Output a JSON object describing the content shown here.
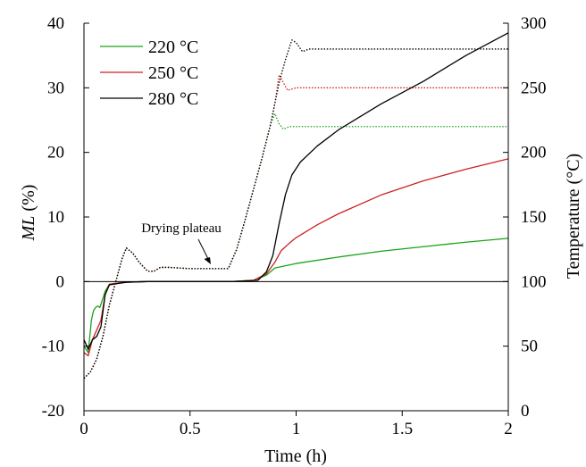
{
  "chart_data": {
    "type": "line",
    "xlabel": "Time (h)",
    "ylabel_left_italic": "ML",
    "ylabel_left_rest": " (%)",
    "ylabel_right": "Temperature (°C)",
    "xlim": [
      0,
      2
    ],
    "ylim_left": [
      -20,
      40
    ],
    "ylim_right": [
      0,
      300
    ],
    "x_ticks": [
      0,
      0.5,
      1,
      1.5,
      2
    ],
    "x_tick_labels": [
      "0",
      "0.5",
      "1",
      "1.5",
      "2"
    ],
    "y_left_ticks": [
      -20,
      -10,
      0,
      10,
      20,
      30,
      40
    ],
    "y_left_tick_labels": [
      "-20",
      "-10",
      "0",
      "10",
      "20",
      "30",
      "40"
    ],
    "y_right_ticks": [
      0,
      50,
      100,
      150,
      200,
      250,
      300
    ],
    "y_right_tick_labels": [
      "0",
      "50",
      "100",
      "150",
      "200",
      "250",
      "300"
    ],
    "grid": false,
    "legend_position": "top-left",
    "annotation": {
      "text": "Drying plateau",
      "x": 0.6,
      "y": 2.2
    },
    "series": [
      {
        "name": "220 °C",
        "color": "#1aa31a",
        "axis": "left",
        "style": "solid",
        "points": [
          [
            0,
            -10
          ],
          [
            0.02,
            -11
          ],
          [
            0.035,
            -6
          ],
          [
            0.045,
            -4.5
          ],
          [
            0.055,
            -4
          ],
          [
            0.065,
            -3.8
          ],
          [
            0.075,
            -4
          ],
          [
            0.085,
            -3
          ],
          [
            0.1,
            -1.5
          ],
          [
            0.12,
            -0.4
          ],
          [
            0.2,
            -0.1
          ],
          [
            0.3,
            0
          ],
          [
            0.5,
            0
          ],
          [
            0.7,
            0
          ],
          [
            0.8,
            0.2
          ],
          [
            0.86,
            1
          ],
          [
            0.9,
            2.1
          ],
          [
            1,
            2.8
          ],
          [
            1.2,
            3.8
          ],
          [
            1.4,
            4.7
          ],
          [
            1.6,
            5.4
          ],
          [
            1.8,
            6.1
          ],
          [
            2,
            6.7
          ]
        ]
      },
      {
        "name": "250 °C",
        "color": "#cc2222",
        "axis": "left",
        "style": "solid",
        "points": [
          [
            0,
            -11
          ],
          [
            0.02,
            -11.5
          ],
          [
            0.04,
            -9
          ],
          [
            0.06,
            -7.5
          ],
          [
            0.08,
            -6
          ],
          [
            0.1,
            -2
          ],
          [
            0.12,
            -0.4
          ],
          [
            0.2,
            -0.1
          ],
          [
            0.3,
            0
          ],
          [
            0.5,
            0
          ],
          [
            0.7,
            0
          ],
          [
            0.8,
            0.2
          ],
          [
            0.86,
            1.2
          ],
          [
            0.9,
            3
          ],
          [
            0.93,
            4.8
          ],
          [
            0.97,
            6
          ],
          [
            1,
            6.8
          ],
          [
            1.1,
            8.8
          ],
          [
            1.2,
            10.5
          ],
          [
            1.4,
            13.4
          ],
          [
            1.6,
            15.6
          ],
          [
            1.8,
            17.4
          ],
          [
            2,
            19
          ]
        ]
      },
      {
        "name": "280 °C",
        "color": "#000000",
        "axis": "left",
        "style": "solid",
        "points": [
          [
            0,
            -9
          ],
          [
            0.02,
            -10.5
          ],
          [
            0.04,
            -9
          ],
          [
            0.06,
            -8.5
          ],
          [
            0.08,
            -7
          ],
          [
            0.1,
            -2
          ],
          [
            0.12,
            -0.5
          ],
          [
            0.2,
            -0.1
          ],
          [
            0.3,
            0
          ],
          [
            0.5,
            0
          ],
          [
            0.7,
            0
          ],
          [
            0.82,
            0.2
          ],
          [
            0.86,
            1.5
          ],
          [
            0.89,
            4
          ],
          [
            0.92,
            9
          ],
          [
            0.95,
            13.5
          ],
          [
            0.98,
            16.5
          ],
          [
            1.02,
            18.5
          ],
          [
            1.1,
            21
          ],
          [
            1.2,
            23.5
          ],
          [
            1.4,
            27.5
          ],
          [
            1.6,
            31
          ],
          [
            1.8,
            35
          ],
          [
            2,
            38.5
          ]
        ]
      },
      {
        "name": "",
        "color": "#1aa31a",
        "axis": "right",
        "style": "dotted",
        "points": [
          [
            0,
            25
          ],
          [
            0.03,
            30
          ],
          [
            0.06,
            40
          ],
          [
            0.09,
            58
          ],
          [
            0.12,
            82
          ],
          [
            0.15,
            100
          ],
          [
            0.18,
            118
          ],
          [
            0.2,
            126
          ],
          [
            0.23,
            122
          ],
          [
            0.26,
            115
          ],
          [
            0.3,
            108
          ],
          [
            0.33,
            108
          ],
          [
            0.36,
            111
          ],
          [
            0.4,
            111
          ],
          [
            0.5,
            110
          ],
          [
            0.6,
            110
          ],
          [
            0.68,
            110
          ],
          [
            0.72,
            125
          ],
          [
            0.76,
            148
          ],
          [
            0.8,
            172
          ],
          [
            0.84,
            196
          ],
          [
            0.88,
            222
          ],
          [
            0.9,
            230
          ],
          [
            0.92,
            222
          ],
          [
            0.94,
            218
          ],
          [
            0.97,
            220
          ],
          [
            1,
            220
          ],
          [
            1.5,
            220
          ],
          [
            2,
            220
          ]
        ]
      },
      {
        "name": "",
        "color": "#cc2222",
        "axis": "right",
        "style": "dotted",
        "points": [
          [
            0,
            25
          ],
          [
            0.03,
            30
          ],
          [
            0.06,
            40
          ],
          [
            0.09,
            58
          ],
          [
            0.12,
            82
          ],
          [
            0.15,
            100
          ],
          [
            0.18,
            118
          ],
          [
            0.2,
            126
          ],
          [
            0.23,
            122
          ],
          [
            0.26,
            115
          ],
          [
            0.3,
            108
          ],
          [
            0.33,
            108
          ],
          [
            0.36,
            111
          ],
          [
            0.4,
            111
          ],
          [
            0.5,
            110
          ],
          [
            0.6,
            110
          ],
          [
            0.68,
            110
          ],
          [
            0.72,
            125
          ],
          [
            0.76,
            148
          ],
          [
            0.8,
            172
          ],
          [
            0.84,
            196
          ],
          [
            0.88,
            222
          ],
          [
            0.9,
            238
          ],
          [
            0.92,
            260
          ],
          [
            0.94,
            254
          ],
          [
            0.96,
            248
          ],
          [
            1,
            250
          ],
          [
            1.5,
            250
          ],
          [
            2,
            250
          ]
        ]
      },
      {
        "name": "",
        "color": "#000000",
        "axis": "right",
        "style": "dotted",
        "points": [
          [
            0,
            25
          ],
          [
            0.03,
            30
          ],
          [
            0.06,
            40
          ],
          [
            0.09,
            58
          ],
          [
            0.12,
            82
          ],
          [
            0.15,
            100
          ],
          [
            0.18,
            118
          ],
          [
            0.2,
            126
          ],
          [
            0.23,
            122
          ],
          [
            0.26,
            115
          ],
          [
            0.3,
            108
          ],
          [
            0.33,
            108
          ],
          [
            0.36,
            111
          ],
          [
            0.4,
            111
          ],
          [
            0.5,
            110
          ],
          [
            0.6,
            110
          ],
          [
            0.68,
            110
          ],
          [
            0.72,
            125
          ],
          [
            0.76,
            148
          ],
          [
            0.8,
            172
          ],
          [
            0.84,
            196
          ],
          [
            0.88,
            222
          ],
          [
            0.9,
            238
          ],
          [
            0.92,
            254
          ],
          [
            0.95,
            272
          ],
          [
            0.98,
            287
          ],
          [
            1,
            285
          ],
          [
            1.03,
            278
          ],
          [
            1.06,
            280
          ],
          [
            1.5,
            280
          ],
          [
            2,
            280
          ]
        ]
      }
    ]
  }
}
